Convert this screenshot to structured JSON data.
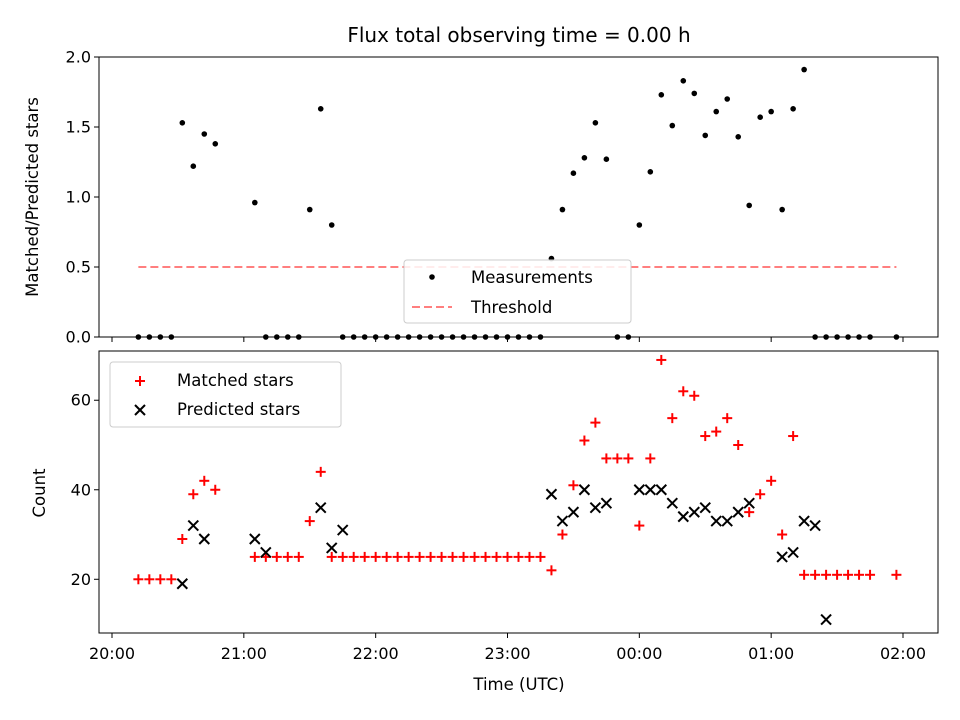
{
  "chart_data": [
    {
      "type": "scatter",
      "title": "Flux total observing time = 0.00 h",
      "xlabel": "",
      "ylabel": "Matched/Predicted stars",
      "ylim": [
        0,
        2.0
      ],
      "yticks": [
        "0.0",
        "0.5",
        "1.0",
        "1.5",
        "2.0"
      ],
      "ytick_values": [
        0,
        0.5,
        1.0,
        1.5,
        2.0
      ],
      "legend_position": "lower-center",
      "colors": {
        "measurements": "#000000",
        "threshold": "#ff7f7f"
      },
      "threshold": {
        "name": "Threshold",
        "value": 0.5,
        "x_start": "20:12",
        "x_end": "01:57"
      },
      "series": [
        {
          "name": "Measurements",
          "marker": "dot",
          "x": [
            "20:12",
            "20:17",
            "20:22",
            "20:27",
            "20:32",
            "20:37",
            "20:42",
            "20:47",
            "21:05",
            "21:10",
            "21:15",
            "21:20",
            "21:25",
            "21:30",
            "21:35",
            "21:40",
            "21:45",
            "21:50",
            "21:55",
            "22:00",
            "22:05",
            "22:10",
            "22:15",
            "22:20",
            "22:25",
            "22:30",
            "22:35",
            "22:40",
            "22:45",
            "22:50",
            "22:55",
            "23:00",
            "23:05",
            "23:10",
            "23:15",
            "23:20",
            "23:25",
            "23:30",
            "23:35",
            "23:40",
            "23:45",
            "23:50",
            "23:55",
            "00:00",
            "00:05",
            "00:10",
            "00:15",
            "00:20",
            "00:25",
            "00:30",
            "00:35",
            "00:40",
            "00:45",
            "00:50",
            "00:55",
            "01:00",
            "01:05",
            "01:10",
            "01:15",
            "01:20",
            "01:25",
            "01:30",
            "01:35",
            "01:40",
            "01:45",
            "01:57"
          ],
          "values": [
            0,
            0,
            0,
            0,
            1.53,
            1.22,
            1.45,
            1.38,
            0.96,
            0,
            0,
            0,
            0,
            0.91,
            1.63,
            0.8,
            0,
            0,
            0,
            0,
            0,
            0,
            0,
            0,
            0,
            0,
            0,
            0,
            0,
            0,
            0,
            0,
            0,
            0,
            0,
            0.56,
            0.91,
            1.17,
            1.28,
            1.53,
            1.27,
            0,
            0,
            0.8,
            1.18,
            1.73,
            1.51,
            1.83,
            1.74,
            1.44,
            1.61,
            1.7,
            1.43,
            0.94,
            1.57,
            1.61,
            0.91,
            1.63,
            1.91,
            0,
            0,
            0,
            0,
            0,
            0,
            0
          ]
        }
      ]
    },
    {
      "type": "scatter",
      "title": "",
      "xlabel": "Time (UTC)",
      "ylabel": "Count",
      "ylim": [
        8,
        71
      ],
      "yticks": [
        "20",
        "40",
        "60"
      ],
      "ytick_values": [
        20,
        40,
        60
      ],
      "xticks": [
        "20:00",
        "21:00",
        "22:00",
        "23:00",
        "00:00",
        "01:00",
        "02:00"
      ],
      "legend_position": "upper-left",
      "colors": {
        "matched": "#ff0000",
        "predicted": "#000000"
      },
      "series": [
        {
          "name": "Matched stars",
          "marker": "plus",
          "x": [
            "20:12",
            "20:17",
            "20:22",
            "20:27",
            "20:32",
            "20:37",
            "20:42",
            "20:47",
            "21:05",
            "21:10",
            "21:15",
            "21:20",
            "21:25",
            "21:30",
            "21:35",
            "21:40",
            "21:45",
            "21:50",
            "21:55",
            "22:00",
            "22:05",
            "22:10",
            "22:15",
            "22:20",
            "22:25",
            "22:30",
            "22:35",
            "22:40",
            "22:45",
            "22:50",
            "22:55",
            "23:00",
            "23:05",
            "23:10",
            "23:15",
            "23:20",
            "23:25",
            "23:30",
            "23:35",
            "23:40",
            "23:45",
            "23:50",
            "23:55",
            "00:00",
            "00:05",
            "00:10",
            "00:15",
            "00:20",
            "00:25",
            "00:30",
            "00:35",
            "00:40",
            "00:45",
            "00:50",
            "00:55",
            "01:00",
            "01:05",
            "01:10",
            "01:15",
            "01:20",
            "01:25",
            "01:30",
            "01:35",
            "01:40",
            "01:45",
            "01:57"
          ],
          "values": [
            20,
            20,
            20,
            20,
            29,
            39,
            42,
            40,
            25,
            25,
            25,
            25,
            25,
            33,
            44,
            25,
            25,
            25,
            25,
            25,
            25,
            25,
            25,
            25,
            25,
            25,
            25,
            25,
            25,
            25,
            25,
            25,
            25,
            25,
            25,
            22,
            30,
            41,
            51,
            55,
            47,
            47,
            47,
            32,
            47,
            69,
            56,
            62,
            61,
            52,
            53,
            56,
            50,
            35,
            39,
            42,
            30,
            52,
            21,
            21,
            21,
            21,
            21,
            21,
            21,
            21
          ]
        },
        {
          "name": "Predicted stars",
          "marker": "x",
          "x": [
            "20:32",
            "20:37",
            "20:42",
            "21:05",
            "21:10",
            "21:35",
            "21:40",
            "21:45",
            "23:20",
            "23:25",
            "23:30",
            "23:35",
            "23:40",
            "23:45",
            "00:00",
            "00:05",
            "00:10",
            "00:15",
            "00:20",
            "00:25",
            "00:30",
            "00:35",
            "00:40",
            "00:45",
            "00:50",
            "01:05",
            "01:10",
            "01:15",
            "01:20",
            "01:25"
          ],
          "values": [
            19,
            32,
            29,
            29,
            26,
            36,
            27,
            31,
            39,
            33,
            35,
            40,
            36,
            37,
            40,
            40,
            40,
            37,
            34,
            35,
            36,
            33,
            33,
            35,
            37,
            25,
            26,
            33,
            32,
            11
          ]
        }
      ]
    }
  ]
}
